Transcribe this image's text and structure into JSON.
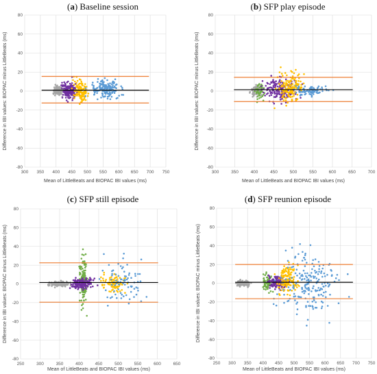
{
  "figure": {
    "panels": [
      {
        "letter": "a",
        "title": "Baseline session"
      },
      {
        "letter": "b",
        "title": "SFP play episode"
      },
      {
        "letter": "c",
        "title": "SFP still episode"
      },
      {
        "letter": "d",
        "title": "SFP reunion episode"
      }
    ]
  },
  "colors": {
    "grey": "#a6a6a6",
    "purple": "#7030a0",
    "yellow": "#ffc000",
    "blue": "#5b9bd5",
    "green": "#70ad47",
    "limit": "#ed7d31",
    "mean": "#000000",
    "grid": "#d9d9d9"
  },
  "chart_data": [
    {
      "type": "scatter",
      "title": "(a) Baseline session",
      "xlabel": "Mean of LittleBeats and BIOPAC IBI values (ms)",
      "ylabel": "Difference in IBI values: BIOPAC minus LittleBeats (ms)",
      "xlim": [
        300,
        750
      ],
      "ylim": [
        -80,
        80
      ],
      "xticks": [
        300,
        350,
        400,
        450,
        500,
        550,
        600,
        650,
        700,
        750
      ],
      "yticks": [
        -80,
        -60,
        -40,
        -20,
        0,
        20,
        40,
        60,
        80
      ],
      "grid": true,
      "mean_bias": 1,
      "upper_limit": 15.5,
      "lower_limit": -12.5,
      "series": [
        {
          "color": "grey",
          "x_range": [
            380,
            430
          ],
          "y_range": [
            -8,
            10
          ],
          "n": 120
        },
        {
          "color": "purple",
          "x_range": [
            405,
            480
          ],
          "y_range": [
            -15,
            20
          ],
          "n": 170
        },
        {
          "color": "yellow",
          "x_range": [
            445,
            510
          ],
          "y_range": [
            -18,
            30
          ],
          "n": 130
        },
        {
          "color": "blue",
          "x_range": [
            480,
            640
          ],
          "y_range": [
            -12,
            22
          ],
          "n": 170
        }
      ]
    },
    {
      "type": "scatter",
      "title": "(b) SFP play episode",
      "xlabel": "Mean of LittleBeats and BIOPAC IBI values (ms)",
      "ylabel": "Difference in IBI values: BIOPAC minus LittleBeats (ms)",
      "xlim": [
        300,
        700
      ],
      "ylim": [
        -80,
        80
      ],
      "xticks": [
        300,
        350,
        400,
        450,
        500,
        550,
        600,
        650,
        700
      ],
      "yticks": [
        -80,
        -60,
        -40,
        -20,
        0,
        20,
        40,
        60,
        80
      ],
      "grid": true,
      "mean_bias": 1.5,
      "upper_limit": 14.5,
      "lower_limit": -11,
      "series": [
        {
          "color": "grey",
          "x_range": [
            385,
            430
          ],
          "y_range": [
            -10,
            12
          ],
          "n": 110
        },
        {
          "color": "green",
          "x_range": [
            395,
            430
          ],
          "y_range": [
            -18,
            20
          ],
          "n": 40
        },
        {
          "color": "purple",
          "x_range": [
            400,
            540
          ],
          "y_range": [
            -15,
            25
          ],
          "n": 170
        },
        {
          "color": "yellow",
          "x_range": [
            440,
            540
          ],
          "y_range": [
            -18,
            40
          ],
          "n": 160
        },
        {
          "color": "blue",
          "x_range": [
            480,
            610
          ],
          "y_range": [
            -10,
            12
          ],
          "n": 80
        }
      ]
    },
    {
      "type": "scatter",
      "title": "(c) SFP still episode",
      "xlabel": "Mean of LittleBeats and BIOPAC IBI values (ms)",
      "ylabel": "Difference in IBI values: BIOPAC minus LittleBeats (ms)",
      "xlim": [
        250,
        650
      ],
      "ylim": [
        -80,
        80
      ],
      "xticks": [
        250,
        300,
        350,
        400,
        450,
        500,
        550,
        600,
        650
      ],
      "yticks": [
        -80,
        -60,
        -40,
        -20,
        0,
        20,
        40,
        60,
        80
      ],
      "grid": true,
      "mean_bias": 1.5,
      "upper_limit": 22.5,
      "lower_limit": -19.5,
      "series": [
        {
          "color": "grey",
          "x_range": [
            310,
            390
          ],
          "y_range": [
            -5,
            5
          ],
          "n": 150
        },
        {
          "color": "green",
          "x_range": [
            395,
            425
          ],
          "y_range": [
            -40,
            55
          ],
          "n": 130
        },
        {
          "color": "purple",
          "x_range": [
            370,
            450
          ],
          "y_range": [
            -8,
            12
          ],
          "n": 170
        },
        {
          "color": "yellow",
          "x_range": [
            440,
            540
          ],
          "y_range": [
            -15,
            20
          ],
          "n": 90
        },
        {
          "color": "blue",
          "x_range": [
            420,
            600
          ],
          "y_range": [
            -50,
            45
          ],
          "n": 80
        }
      ]
    },
    {
      "type": "scatter",
      "title": "(d) SFP reunion episode",
      "xlabel": "Mean of LittleBeats and BIOPAC IBI values (ms)",
      "ylabel": "Difference in IBI values: BIOPAC minus LittleBeats (ms)",
      "xlim": [
        250,
        750
      ],
      "ylim": [
        -80,
        80
      ],
      "xticks": [
        250,
        300,
        350,
        400,
        450,
        500,
        550,
        600,
        650,
        700,
        750
      ],
      "yticks": [
        -80,
        -60,
        -40,
        -20,
        0,
        20,
        40,
        60,
        80
      ],
      "grid": true,
      "mean_bias": 1,
      "upper_limit": 20,
      "lower_limit": -16.5,
      "series": [
        {
          "color": "grey",
          "x_range": [
            300,
            370
          ],
          "y_range": [
            -6,
            6
          ],
          "n": 140
        },
        {
          "color": "green",
          "x_range": [
            390,
            440
          ],
          "y_range": [
            -15,
            25
          ],
          "n": 70
        },
        {
          "color": "purple",
          "x_range": [
            400,
            500
          ],
          "y_range": [
            -10,
            15
          ],
          "n": 170
        },
        {
          "color": "yellow",
          "x_range": [
            430,
            530
          ],
          "y_range": [
            -15,
            40
          ],
          "n": 140
        },
        {
          "color": "blue",
          "x_range": [
            400,
            700
          ],
          "y_range": [
            -65,
            55
          ],
          "n": 200
        }
      ]
    }
  ]
}
